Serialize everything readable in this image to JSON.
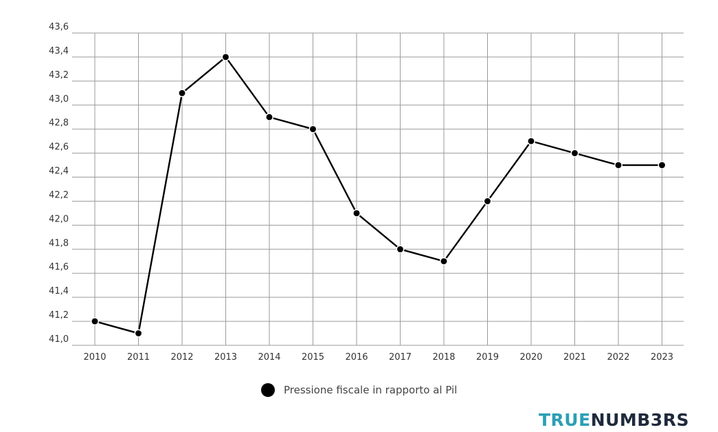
{
  "chart_data": {
    "type": "line",
    "x": [
      "2010",
      "2011",
      "2012",
      "2013",
      "2014",
      "2015",
      "2016",
      "2017",
      "2018",
      "2019",
      "2020",
      "2021",
      "2022",
      "2023"
    ],
    "series": [
      {
        "name": "Pressione fiscale in rapporto al Pil",
        "values": [
          41.2,
          41.1,
          43.1,
          43.4,
          42.9,
          42.8,
          42.1,
          41.8,
          41.7,
          42.2,
          42.7,
          42.6,
          42.5,
          42.5
        ],
        "color": "#000000"
      }
    ],
    "yticks": [
      "41,0",
      "41,2",
      "41,4",
      "41,6",
      "41,8",
      "42,0",
      "42,2",
      "42,4",
      "42,6",
      "42,8",
      "43,0",
      "43,2",
      "43,4",
      "43,6"
    ],
    "ylim": [
      41.0,
      43.6
    ],
    "grid": true,
    "legend_position": "bottom-center",
    "title": "",
    "xlabel": "",
    "ylabel": ""
  },
  "legend": {
    "label": "Pressione fiscale in rapporto al Pil"
  },
  "brand": {
    "part1": "TRUE",
    "part2": "NUMB3RS",
    "color1": "#2b9fb6",
    "color2": "#1f2a3c"
  }
}
